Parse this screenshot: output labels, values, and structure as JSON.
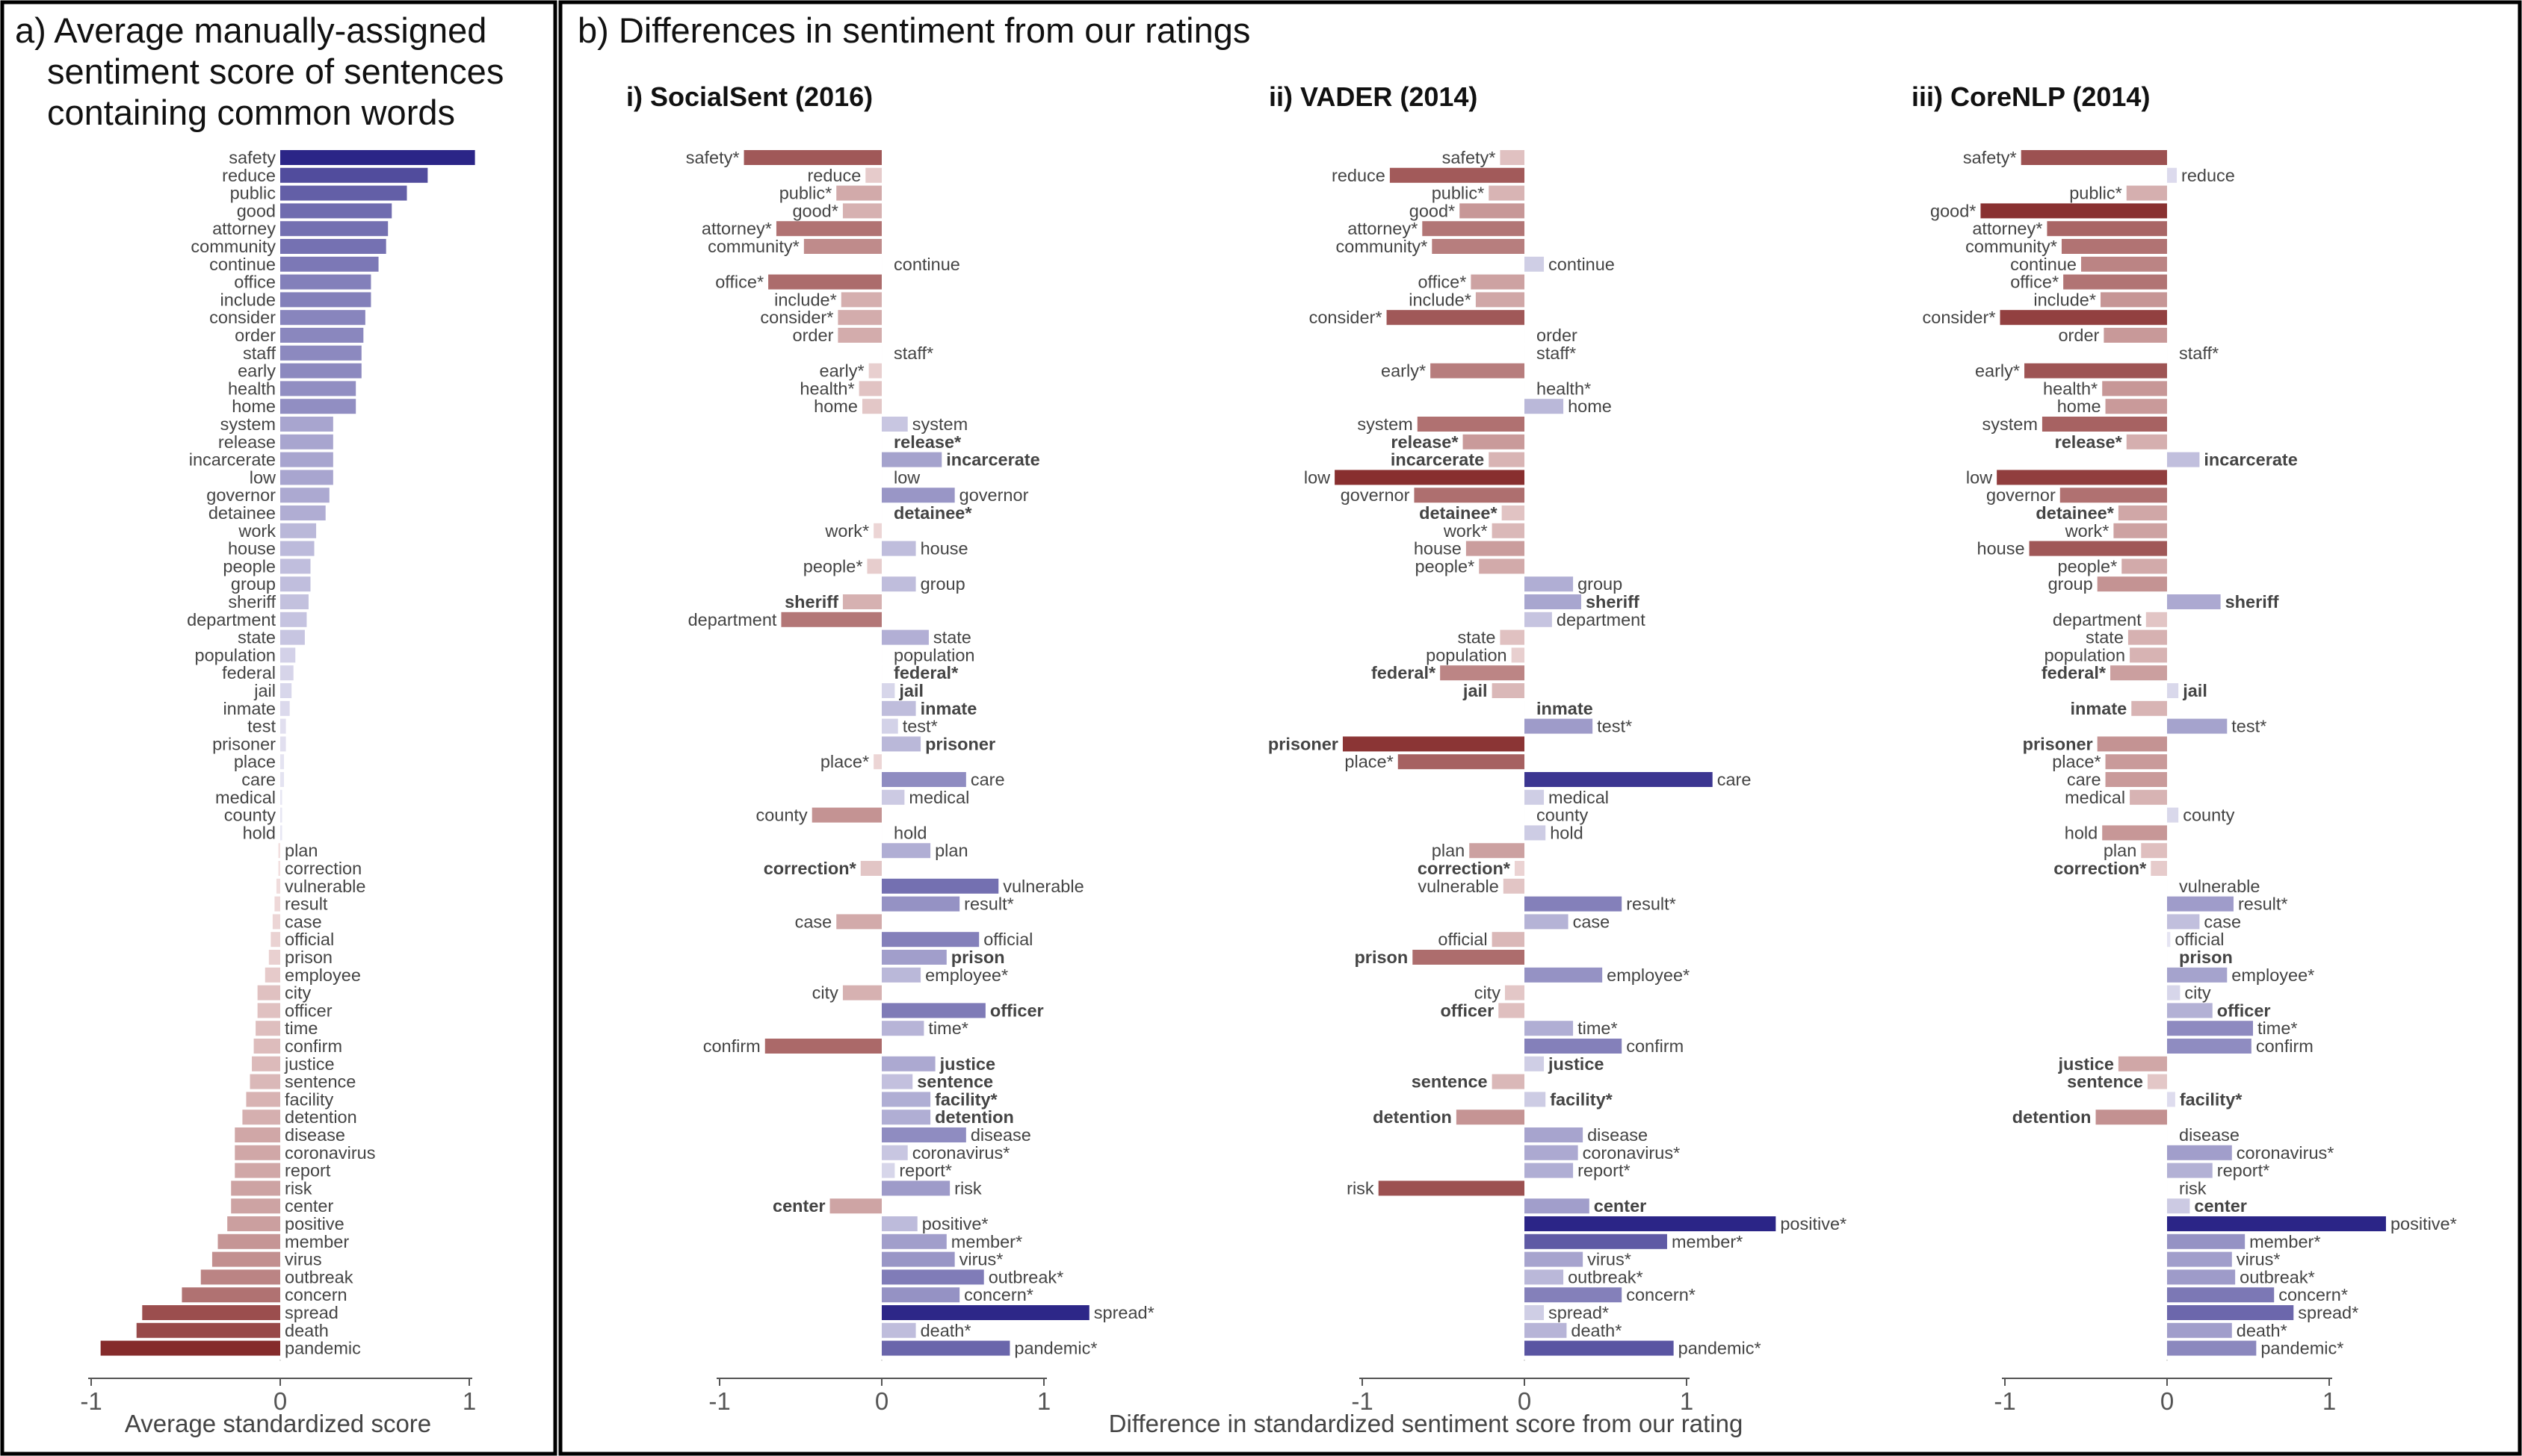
{
  "panel_a": {
    "title_lines": [
      "a) Average manually-assigned",
      "sentiment score of sentences",
      "containing common words"
    ],
    "xlabel": "Average standardized score"
  },
  "panel_b": {
    "title": "b) Differences in sentiment from our ratings",
    "xlabel": "Difference in standardized sentiment score from our rating"
  },
  "bold_words": [
    "release",
    "incarcerate",
    "detainee",
    "sheriff",
    "federal",
    "jail",
    "inmate",
    "prisoner",
    "correction",
    "prison",
    "officer",
    "justice",
    "sentence",
    "facility",
    "detention",
    "center"
  ],
  "chart_data": [
    {
      "type": "bar",
      "orientation": "horizontal",
      "panel": "a",
      "xlim": [
        -1,
        1.1
      ],
      "xticks": [
        -1,
        0,
        1
      ],
      "categories": [
        "safety",
        "reduce",
        "public",
        "good",
        "attorney",
        "community",
        "continue",
        "office",
        "include",
        "consider",
        "order",
        "staff",
        "early",
        "health",
        "home",
        "system",
        "release",
        "incarcerate",
        "low",
        "governor",
        "detainee",
        "work",
        "house",
        "people",
        "group",
        "sheriff",
        "department",
        "state",
        "population",
        "federal",
        "jail",
        "inmate",
        "test",
        "prisoner",
        "place",
        "care",
        "medical",
        "county",
        "hold",
        "plan",
        "correction",
        "vulnerable",
        "result",
        "case",
        "official",
        "prison",
        "employee",
        "city",
        "officer",
        "time",
        "confirm",
        "justice",
        "sentence",
        "facility",
        "detention",
        "disease",
        "coronavirus",
        "report",
        "risk",
        "center",
        "positive",
        "member",
        "virus",
        "outbreak",
        "concern",
        "spread",
        "death",
        "pandemic"
      ],
      "values": [
        1.03,
        0.78,
        0.67,
        0.59,
        0.57,
        0.56,
        0.52,
        0.48,
        0.48,
        0.45,
        0.44,
        0.43,
        0.43,
        0.4,
        0.4,
        0.28,
        0.28,
        0.28,
        0.28,
        0.26,
        0.24,
        0.19,
        0.18,
        0.16,
        0.16,
        0.15,
        0.14,
        0.13,
        0.08,
        0.07,
        0.06,
        0.05,
        0.03,
        0.03,
        0.02,
        0.02,
        0.01,
        0.01,
        0.01,
        -0.01,
        -0.01,
        -0.02,
        -0.03,
        -0.04,
        -0.05,
        -0.06,
        -0.08,
        -0.12,
        -0.12,
        -0.13,
        -0.14,
        -0.15,
        -0.16,
        -0.18,
        -0.2,
        -0.24,
        -0.24,
        -0.24,
        -0.26,
        -0.26,
        -0.28,
        -0.33,
        -0.36,
        -0.42,
        -0.52,
        -0.73,
        -0.76,
        -0.95
      ]
    },
    {
      "type": "bar",
      "orientation": "horizontal",
      "panel": "b",
      "title": "i) SocialSent (2016)",
      "xlim": [
        -1,
        1.5
      ],
      "xticks": [
        -1,
        0,
        1
      ],
      "categories": [
        "safety*",
        "reduce",
        "public*",
        "good*",
        "attorney*",
        "community*",
        "continue",
        "office*",
        "include*",
        "consider*",
        "order",
        "staff*",
        "early*",
        "health*",
        "home",
        "system",
        "release*",
        "incarcerate",
        "low",
        "governor",
        "detainee*",
        "work*",
        "house",
        "people*",
        "group",
        "sheriff",
        "department",
        "state",
        "population",
        "federal*",
        "jail",
        "inmate",
        "test*",
        "prisoner",
        "place*",
        "care",
        "medical",
        "county",
        "hold",
        "plan",
        "correction*",
        "vulnerable",
        "result*",
        "case",
        "official",
        "prison",
        "employee*",
        "city",
        "officer",
        "time*",
        "confirm",
        "justice",
        "sentence",
        "facility*",
        "detention",
        "disease",
        "coronavirus*",
        "report*",
        "risk",
        "center",
        "positive*",
        "member*",
        "virus*",
        "outbreak*",
        "concern*",
        "spread*",
        "death*",
        "pandemic*"
      ],
      "values": [
        -0.85,
        -0.1,
        -0.28,
        -0.24,
        -0.65,
        -0.48,
        0,
        -0.7,
        -0.25,
        -0.27,
        -0.27,
        0,
        -0.08,
        -0.14,
        -0.12,
        0.16,
        0,
        0.37,
        0,
        0.45,
        0,
        -0.05,
        0.21,
        -0.09,
        0.21,
        -0.24,
        -0.62,
        0.29,
        0,
        0,
        0.08,
        0.21,
        0.1,
        0.24,
        -0.05,
        0.52,
        0.14,
        -0.43,
        0,
        0.3,
        -0.13,
        0.72,
        0.48,
        -0.28,
        0.6,
        0.4,
        0.24,
        -0.24,
        0.64,
        0.26,
        -0.72,
        0.33,
        0.19,
        0.3,
        0.3,
        0.52,
        0.16,
        0.08,
        0.42,
        -0.32,
        0.22,
        0.4,
        0.45,
        0.63,
        0.48,
        1.28,
        0.21,
        0.79
      ]
    },
    {
      "type": "bar",
      "orientation": "horizontal",
      "panel": "b",
      "title": "ii) VADER (2014)",
      "xlim": [
        -1,
        1.5
      ],
      "xticks": [
        -1,
        0,
        1
      ],
      "categories": [
        "safety*",
        "reduce",
        "public*",
        "good*",
        "attorney*",
        "community*",
        "continue",
        "office*",
        "include*",
        "consider*",
        "order",
        "staff*",
        "early*",
        "health*",
        "home",
        "system",
        "release*",
        "incarcerate",
        "low",
        "governor",
        "detainee*",
        "work*",
        "house",
        "people*",
        "group",
        "sheriff",
        "department",
        "state",
        "population",
        "federal*",
        "jail",
        "inmate",
        "test*",
        "prisoner",
        "place*",
        "care",
        "medical",
        "county",
        "hold",
        "plan",
        "correction*",
        "vulnerable",
        "result*",
        "case",
        "official",
        "prison",
        "employee*",
        "city",
        "officer",
        "time*",
        "confirm",
        "justice",
        "sentence",
        "facility*",
        "detention",
        "disease",
        "coronavirus*",
        "report*",
        "risk",
        "center",
        "positive*",
        "member*",
        "virus*",
        "outbreak*",
        "concern*",
        "spread*",
        "death*",
        "pandemic*"
      ],
      "values": [
        -0.15,
        -0.83,
        -0.22,
        -0.4,
        -0.63,
        -0.57,
        0.12,
        -0.33,
        -0.3,
        -0.85,
        0,
        0,
        -0.58,
        0,
        0.24,
        -0.66,
        -0.38,
        -0.22,
        -1.17,
        -0.68,
        -0.14,
        -0.2,
        -0.36,
        -0.28,
        0.3,
        0.35,
        0.17,
        -0.15,
        -0.08,
        -0.52,
        -0.2,
        0,
        0.42,
        -1.12,
        -0.78,
        1.16,
        0.12,
        0,
        0.13,
        -0.34,
        -0.06,
        -0.13,
        0.6,
        0.27,
        -0.2,
        -0.69,
        0.48,
        -0.12,
        -0.16,
        0.3,
        0.6,
        0.12,
        -0.2,
        0.13,
        -0.42,
        0.36,
        0.33,
        0.3,
        -0.9,
        0.4,
        1.55,
        0.88,
        0.36,
        0.24,
        0.6,
        0.12,
        0.26,
        0.92
      ]
    },
    {
      "type": "bar",
      "orientation": "horizontal",
      "panel": "b",
      "title": "iii) CoreNLP (2014)",
      "xlim": [
        -1,
        1.5
      ],
      "xticks": [
        -1,
        0,
        1
      ],
      "categories": [
        "safety*",
        "reduce",
        "public*",
        "good*",
        "attorney*",
        "community*",
        "continue",
        "office*",
        "include*",
        "consider*",
        "order",
        "staff*",
        "early*",
        "health*",
        "home",
        "system",
        "release*",
        "incarcerate",
        "low",
        "governor",
        "detainee*",
        "work*",
        "house",
        "people*",
        "group",
        "sheriff",
        "department",
        "state",
        "population",
        "federal*",
        "jail",
        "inmate",
        "test*",
        "prisoner",
        "place*",
        "care",
        "medical",
        "county",
        "hold",
        "plan",
        "correction*",
        "vulnerable",
        "result*",
        "case",
        "official",
        "prison",
        "employee*",
        "city",
        "officer",
        "time*",
        "confirm",
        "justice",
        "sentence",
        "facility*",
        "detention",
        "disease",
        "coronavirus*",
        "report*",
        "risk",
        "center",
        "positive*",
        "member*",
        "virus*",
        "outbreak*",
        "concern*",
        "spread*",
        "death*",
        "pandemic*"
      ],
      "values": [
        -0.9,
        0.06,
        -0.25,
        -1.15,
        -0.74,
        -0.65,
        -0.53,
        -0.64,
        -0.41,
        -1.03,
        -0.39,
        0,
        -0.88,
        -0.4,
        -0.38,
        -0.77,
        -0.25,
        0.2,
        -1.05,
        -0.66,
        -0.3,
        -0.33,
        -0.85,
        -0.28,
        -0.43,
        0.33,
        -0.13,
        -0.24,
        -0.23,
        -0.35,
        0.07,
        -0.22,
        0.37,
        -0.43,
        -0.38,
        -0.38,
        -0.23,
        0.07,
        -0.4,
        -0.16,
        -0.1,
        0,
        0.41,
        0.2,
        0.02,
        0,
        0.37,
        0.08,
        0.28,
        0.53,
        0.52,
        -0.3,
        -0.12,
        0.05,
        -0.44,
        0,
        0.4,
        0.28,
        0,
        0.14,
        1.35,
        0.48,
        0.4,
        0.42,
        0.66,
        0.78,
        0.4,
        0.55
      ]
    }
  ]
}
